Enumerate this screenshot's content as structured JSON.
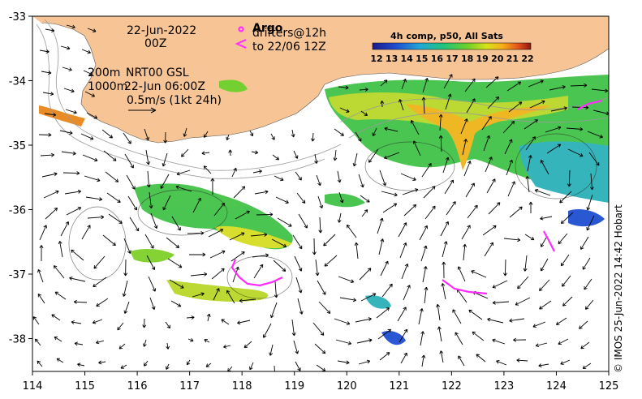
{
  "map": {
    "x_ticks": [
      "114",
      "115",
      "116",
      "117",
      "118",
      "119",
      "120",
      "121",
      "122",
      "123",
      "124",
      "125"
    ],
    "y_ticks": [
      "-33",
      "-34",
      "-35",
      "-36",
      "-37",
      "-38"
    ],
    "date_line1": "22-Jun-2022",
    "date_line2": "00Z",
    "depth_200": "200m",
    "depth_1000": "1000m",
    "model": "NRT00 GSL",
    "model_time": "22-Jun 06:00Z",
    "vector_scale": "0.5m/s (1kt 24h)",
    "argo_label": "Argo",
    "drifters_label": "drifters@12h",
    "drifters_to": "to 22/06 12Z",
    "colorbar_title": "4h comp, p50, All Sats",
    "colorbar_ticks": [
      "12",
      "13",
      "14",
      "15",
      "16",
      "17",
      "18",
      "19",
      "20",
      "21",
      "22"
    ],
    "credit": "© IMOS 25-Jun-2022 14:42 Hobart",
    "colors": {
      "land": "#f7c495",
      "drifter": "#ff2bff",
      "frame": "#000000"
    }
  }
}
